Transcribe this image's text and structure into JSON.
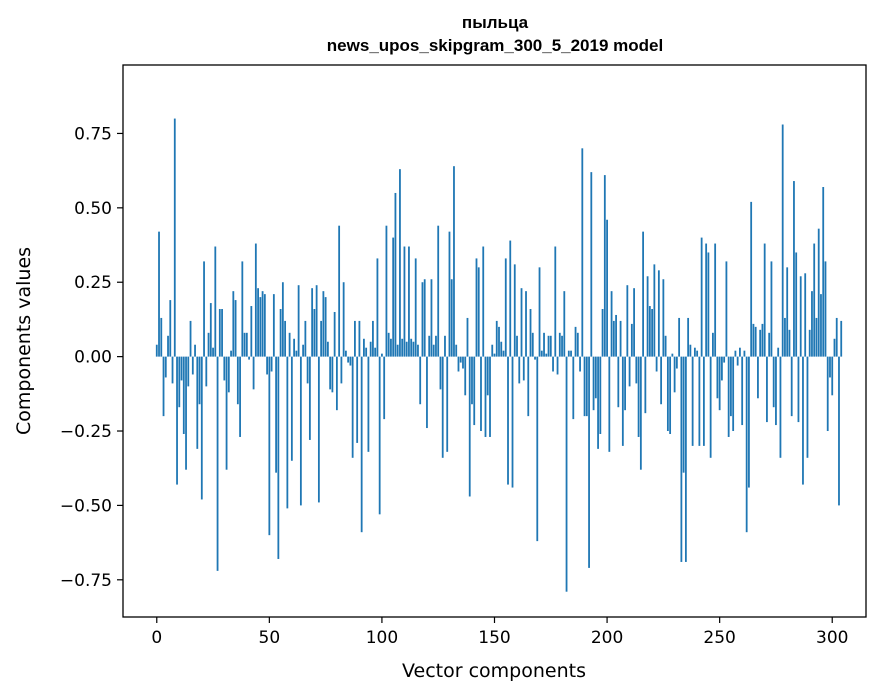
{
  "chart_data": {
    "type": "bar",
    "title": "пыльца",
    "subtitle": "news_upos_skipgram_300_5_2019 model",
    "xlabel": "Vector components",
    "ylabel": "Components values",
    "xlim": [
      -15,
      315
    ],
    "ylim": [
      -0.875,
      0.98
    ],
    "xticks": [
      0,
      50,
      100,
      150,
      200,
      250,
      300
    ],
    "xtick_labels": [
      "0",
      "50",
      "100",
      "150",
      "200",
      "250",
      "300"
    ],
    "yticks": [
      -0.75,
      -0.5,
      -0.25,
      0.0,
      0.25,
      0.5,
      0.75
    ],
    "ytick_labels": [
      "−0.75",
      "−0.50",
      "−0.25",
      "0.00",
      "0.25",
      "0.50",
      "0.75"
    ],
    "color": "#1f77b4",
    "x_start": 0,
    "values": [
      0.04,
      0.42,
      0.13,
      -0.2,
      -0.07,
      0.07,
      0.19,
      -0.09,
      0.8,
      -0.43,
      -0.17,
      -0.08,
      -0.26,
      -0.38,
      -0.1,
      0.12,
      -0.06,
      0.04,
      -0.31,
      -0.16,
      -0.48,
      0.32,
      -0.1,
      0.08,
      0.18,
      0.03,
      0.37,
      -0.72,
      0.16,
      0.16,
      -0.08,
      -0.38,
      -0.12,
      0.02,
      0.22,
      0.19,
      -0.16,
      -0.27,
      0.32,
      0.08,
      0.08,
      -0.01,
      0.17,
      -0.11,
      0.38,
      0.23,
      0.2,
      0.22,
      0.21,
      -0.06,
      -0.6,
      -0.05,
      0.21,
      -0.39,
      -0.68,
      0.16,
      0.25,
      0.12,
      -0.51,
      0.08,
      -0.35,
      0.06,
      0.02,
      0.24,
      -0.5,
      0.04,
      0.12,
      -0.09,
      -0.28,
      0.23,
      0.16,
      0.24,
      -0.49,
      0.12,
      0.22,
      0.2,
      0.05,
      -0.11,
      -0.12,
      0.15,
      -0.18,
      0.44,
      -0.09,
      0.25,
      0.02,
      -0.02,
      -0.03,
      -0.34,
      0.12,
      -0.29,
      0.12,
      -0.59,
      0.06,
      0.03,
      -0.32,
      0.05,
      0.12,
      0.03,
      0.33,
      -0.53,
      0.01,
      -0.21,
      0.44,
      0.08,
      0.06,
      0.4,
      0.55,
      0.04,
      0.63,
      0.06,
      0.37,
      0.05,
      0.37,
      0.06,
      0.05,
      0.33,
      0.04,
      -0.16,
      0.25,
      0.26,
      -0.24,
      0.07,
      0.26,
      0.04,
      0.07,
      0.44,
      -0.11,
      -0.34,
      0.07,
      -0.32,
      0.42,
      0.26,
      0.64,
      0.04,
      -0.05,
      -0.02,
      -0.04,
      -0.13,
      0.13,
      -0.47,
      -0.16,
      -0.23,
      0.33,
      0.3,
      -0.25,
      0.37,
      -0.27,
      -0.13,
      -0.27,
      0.04,
      0.01,
      0.12,
      0.1,
      0.05,
      0.02,
      0.33,
      -0.43,
      0.39,
      -0.44,
      0.31,
      0.07,
      -0.09,
      0.23,
      -0.08,
      0.22,
      -0.2,
      0.16,
      0.08,
      -0.01,
      -0.62,
      0.3,
      0.02,
      0.08,
      0.01,
      0.07,
      0.07,
      -0.05,
      0.37,
      -0.06,
      0.08,
      0.07,
      0.22,
      -0.79,
      0.02,
      0.02,
      -0.21,
      0.1,
      0.08,
      -0.05,
      0.7,
      -0.2,
      -0.2,
      -0.71,
      0.62,
      -0.18,
      -0.14,
      -0.31,
      -0.26,
      0.16,
      0.61,
      0.46,
      -0.32,
      0.22,
      0.12,
      0.14,
      -0.17,
      0.12,
      -0.3,
      -0.18,
      0.24,
      -0.1,
      0.11,
      0.23,
      -0.09,
      -0.27,
      -0.38,
      0.42,
      -0.19,
      0.27,
      0.17,
      0.16,
      0.31,
      -0.05,
      0.29,
      -0.16,
      0.26,
      0.07,
      -0.25,
      -0.26,
      0.01,
      -0.12,
      -0.04,
      0.13,
      -0.69,
      -0.39,
      -0.69,
      0.13,
      0.04,
      -0.3,
      0.03,
      0.02,
      -0.3,
      0.4,
      -0.3,
      0.38,
      0.35,
      -0.34,
      0.08,
      0.38,
      -0.14,
      -0.18,
      -0.08,
      -0.02,
      0.32,
      -0.27,
      -0.2,
      -0.25,
      0.02,
      -0.03,
      0.03,
      -0.23,
      0.02,
      -0.59,
      -0.44,
      0.52,
      0.11,
      0.1,
      -0.14,
      0.09,
      0.11,
      0.38,
      -0.22,
      0.08,
      0.32,
      -0.17,
      -0.23,
      0.03,
      -0.34,
      0.78,
      0.13,
      0.3,
      0.09,
      -0.2,
      0.59,
      0.35,
      -0.22,
      0.27,
      -0.43,
      0.28,
      -0.34,
      0.09,
      0.22,
      0.38,
      0.13,
      0.43,
      0.21,
      0.57,
      0.32,
      -0.25,
      -0.07,
      -0.13,
      0.06,
      0.13,
      -0.5,
      0.12
    ]
  }
}
